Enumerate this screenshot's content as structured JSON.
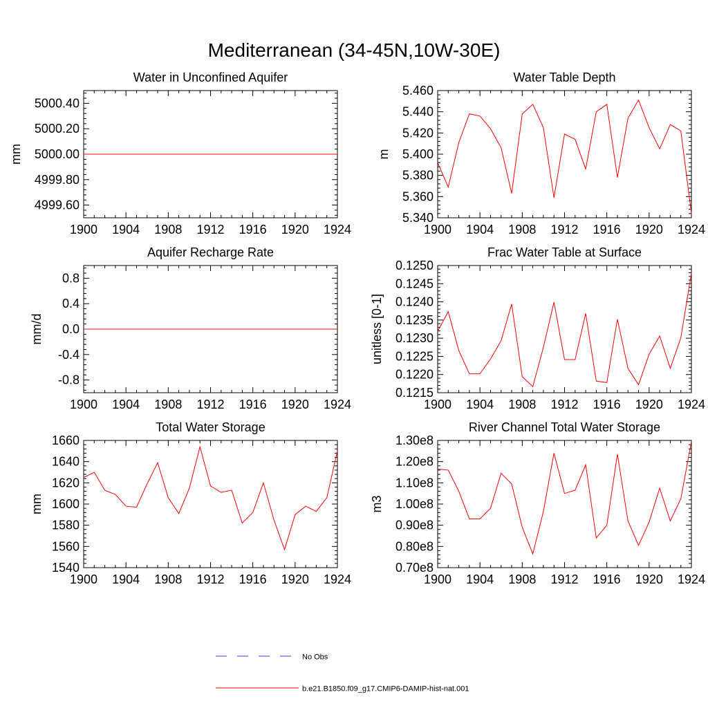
{
  "title": "Mediterranean (34-45N,10W-30E)",
  "colors": {
    "model": "#ff0000",
    "obs": "#3b3bd6",
    "axis": "#000000"
  },
  "legend": {
    "obs_label": "No Obs",
    "model_label": "b.e21.B1850.f09_g17.CMIP6-DAMIP-hist-nat.001"
  },
  "chart_data": [
    {
      "type": "line",
      "title": "Water in Unconfined Aquifer",
      "ylabel": "mm",
      "xlim": [
        1900,
        1924
      ],
      "ylim": [
        4999.5,
        5000.5
      ],
      "xticks": [
        1900,
        1904,
        1908,
        1912,
        1916,
        1920,
        1924
      ],
      "yticks": [
        4999.6,
        4999.8,
        5000.0,
        5000.2,
        5000.4
      ],
      "ytick_labels": [
        "4999.60",
        "4999.80",
        "5000.00",
        "5000.20",
        "5000.40"
      ],
      "grid": false,
      "series": [
        {
          "name": "b.e21.B1850.f09_g17.CMIP6-DAMIP-hist-nat.001",
          "x": [
            1900,
            1901,
            1902,
            1903,
            1904,
            1905,
            1906,
            1907,
            1908,
            1909,
            1910,
            1911,
            1912,
            1913,
            1914,
            1915,
            1916,
            1917,
            1918,
            1919,
            1920,
            1921,
            1922,
            1923,
            1924
          ],
          "y": [
            5000,
            5000,
            5000,
            5000,
            5000,
            5000,
            5000,
            5000,
            5000,
            5000,
            5000,
            5000,
            5000,
            5000,
            5000,
            5000,
            5000,
            5000,
            5000,
            5000,
            5000,
            5000,
            5000,
            5000,
            5000
          ]
        }
      ]
    },
    {
      "type": "line",
      "title": "Water Table Depth",
      "ylabel": "m",
      "xlim": [
        1900,
        1924
      ],
      "ylim": [
        5.34,
        5.46
      ],
      "xticks": [
        1900,
        1904,
        1908,
        1912,
        1916,
        1920,
        1924
      ],
      "yticks": [
        5.34,
        5.36,
        5.38,
        5.4,
        5.42,
        5.44,
        5.46
      ],
      "ytick_labels": [
        "5.340",
        "5.360",
        "5.380",
        "5.400",
        "5.420",
        "5.440",
        "5.460"
      ],
      "grid": false,
      "series": [
        {
          "name": "b.e21.B1850.f09_g17.CMIP6-DAMIP-hist-nat.001",
          "x": [
            1900,
            1901,
            1902,
            1903,
            1904,
            1905,
            1906,
            1907,
            1908,
            1909,
            1910,
            1911,
            1912,
            1913,
            1914,
            1915,
            1916,
            1917,
            1918,
            1919,
            1920,
            1921,
            1922,
            1923,
            1924
          ],
          "y": [
            5.392,
            5.369,
            5.411,
            5.438,
            5.436,
            5.424,
            5.406,
            5.363,
            5.438,
            5.447,
            5.425,
            5.359,
            5.419,
            5.414,
            5.386,
            5.44,
            5.447,
            5.378,
            5.434,
            5.451,
            5.425,
            5.405,
            5.428,
            5.422,
            5.344
          ]
        }
      ]
    },
    {
      "type": "line",
      "title": "Aquifer Recharge Rate",
      "ylabel": "mm/d",
      "xlim": [
        1900,
        1924
      ],
      "ylim": [
        -1.0,
        1.0
      ],
      "xticks": [
        1900,
        1904,
        1908,
        1912,
        1916,
        1920,
        1924
      ],
      "yticks": [
        -0.8,
        -0.4,
        0.0,
        0.4,
        0.8
      ],
      "ytick_labels": [
        "-0.8",
        "-0.4",
        "0.0",
        "0.4",
        "0.8"
      ],
      "grid": false,
      "series": [
        {
          "name": "b.e21.B1850.f09_g17.CMIP6-DAMIP-hist-nat.001",
          "x": [
            1900,
            1901,
            1902,
            1903,
            1904,
            1905,
            1906,
            1907,
            1908,
            1909,
            1910,
            1911,
            1912,
            1913,
            1914,
            1915,
            1916,
            1917,
            1918,
            1919,
            1920,
            1921,
            1922,
            1923,
            1924
          ],
          "y": [
            0,
            0,
            0,
            0,
            0,
            0,
            0,
            0,
            0,
            0,
            0,
            0,
            0,
            0,
            0,
            0,
            0,
            0,
            0,
            0,
            0,
            0,
            0,
            0,
            0
          ]
        }
      ]
    },
    {
      "type": "line",
      "title": "Frac Water Table at Surface",
      "ylabel": "unitless [0-1]",
      "xlim": [
        1900,
        1924
      ],
      "ylim": [
        0.1215,
        0.125
      ],
      "xticks": [
        1900,
        1904,
        1908,
        1912,
        1916,
        1920,
        1924
      ],
      "yticks": [
        0.1215,
        0.122,
        0.1225,
        0.123,
        0.1235,
        0.124,
        0.1245,
        0.125
      ],
      "ytick_labels": [
        "0.1215",
        "0.1220",
        "0.1225",
        "0.1230",
        "0.1235",
        "0.1240",
        "0.1245",
        "0.1250"
      ],
      "grid": false,
      "series": [
        {
          "name": "b.e21.B1850.f09_g17.CMIP6-DAMIP-hist-nat.001",
          "x": [
            1900,
            1901,
            1902,
            1903,
            1904,
            1905,
            1906,
            1907,
            1908,
            1909,
            1910,
            1911,
            1912,
            1913,
            1914,
            1915,
            1916,
            1917,
            1918,
            1919,
            1920,
            1921,
            1922,
            1923,
            1924
          ],
          "y": [
            0.12319,
            0.12373,
            0.12266,
            0.12202,
            0.12202,
            0.12243,
            0.12293,
            0.12394,
            0.12194,
            0.12167,
            0.12275,
            0.12399,
            0.12241,
            0.12241,
            0.12368,
            0.12182,
            0.12178,
            0.12352,
            0.12217,
            0.12172,
            0.12256,
            0.12306,
            0.12217,
            0.12301,
            0.12479
          ]
        }
      ]
    },
    {
      "type": "line",
      "title": "Total Water Storage",
      "ylabel": "mm",
      "xlim": [
        1900,
        1924
      ],
      "ylim": [
        1540,
        1660
      ],
      "xticks": [
        1900,
        1904,
        1908,
        1912,
        1916,
        1920,
        1924
      ],
      "yticks": [
        1540,
        1560,
        1580,
        1600,
        1620,
        1640,
        1660
      ],
      "ytick_labels": [
        "1540",
        "1560",
        "1580",
        "1600",
        "1620",
        "1640",
        "1660"
      ],
      "grid": false,
      "series": [
        {
          "name": "b.e21.B1850.f09_g17.CMIP6-DAMIP-hist-nat.001",
          "x": [
            1900,
            1901,
            1902,
            1903,
            1904,
            1905,
            1906,
            1907,
            1908,
            1909,
            1910,
            1911,
            1912,
            1913,
            1914,
            1915,
            1916,
            1917,
            1918,
            1919,
            1920,
            1921,
            1922,
            1923,
            1924
          ],
          "y": [
            1625,
            1630,
            1613,
            1609,
            1598,
            1597,
            1619,
            1639,
            1606,
            1591,
            1615,
            1654,
            1617,
            1611,
            1613,
            1582,
            1592,
            1620,
            1585,
            1557,
            1590,
            1598,
            1593,
            1606,
            1650
          ]
        }
      ]
    },
    {
      "type": "line",
      "title": "River Channel Total Water Storage",
      "ylabel": "m3",
      "xlim": [
        1900,
        1924
      ],
      "ylim": [
        70000000.0,
        130000000.0
      ],
      "xticks": [
        1900,
        1904,
        1908,
        1912,
        1916,
        1920,
        1924
      ],
      "yticks": [
        70000000.0,
        80000000.0,
        90000000.0,
        100000000.0,
        110000000.0,
        120000000.0,
        130000000.0
      ],
      "ytick_labels": [
        "0.70e8",
        "0.80e8",
        "0.90e8",
        "1.00e8",
        "1.10e8",
        "1.20e8",
        "1.30e8"
      ],
      "grid": false,
      "series": [
        {
          "name": "b.e21.B1850.f09_g17.CMIP6-DAMIP-hist-nat.001",
          "x": [
            1900,
            1901,
            1902,
            1903,
            1904,
            1905,
            1906,
            1907,
            1908,
            1909,
            1910,
            1911,
            1912,
            1913,
            1914,
            1915,
            1916,
            1917,
            1918,
            1919,
            1920,
            1921,
            1922,
            1923,
            1924
          ],
          "y": [
            116500000.0,
            116000000.0,
            106000000.0,
            93000000.0,
            93000000.0,
            98000000.0,
            114500000.0,
            109500000.0,
            89000000.0,
            76500000.0,
            96500000.0,
            124000000.0,
            105000000.0,
            106500000.0,
            118500000.0,
            84000000.0,
            90000000.0,
            123500000.0,
            92000000.0,
            80500000.0,
            91500000.0,
            107500000.0,
            92000000.0,
            102500000.0,
            129500000.0
          ]
        }
      ]
    }
  ]
}
